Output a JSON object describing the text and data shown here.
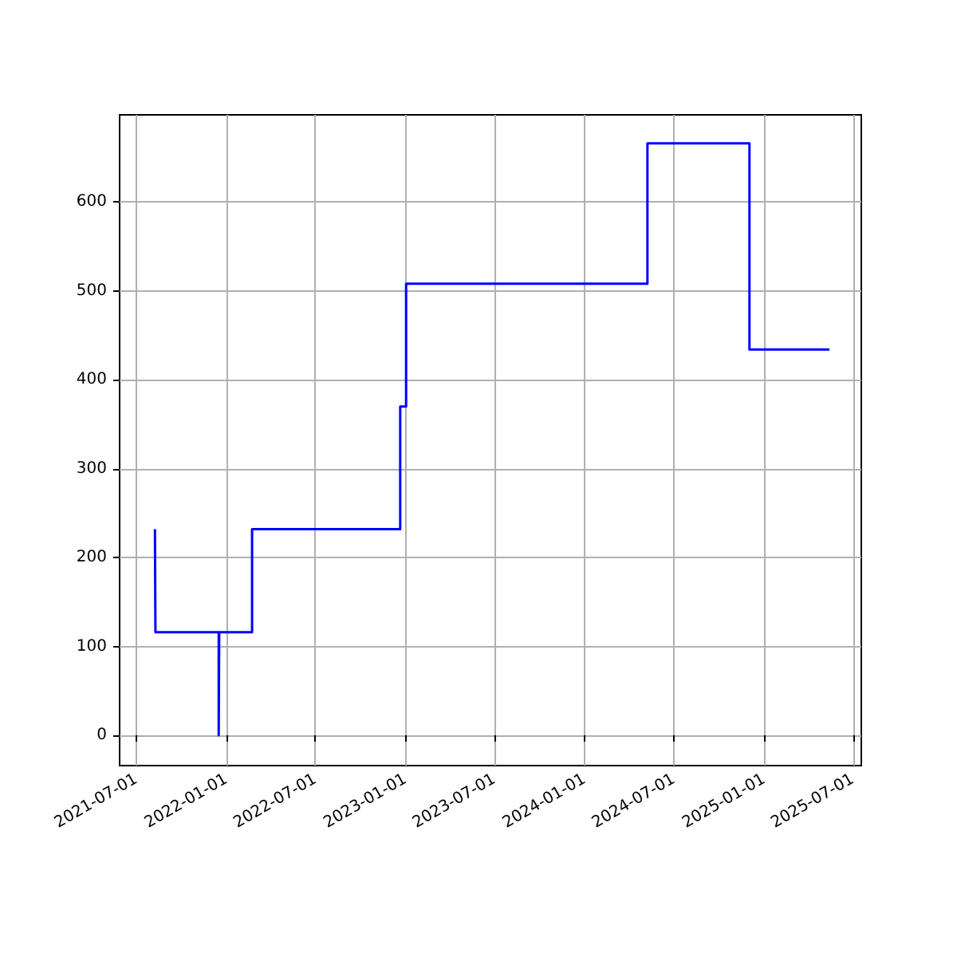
{
  "chart_data": {
    "type": "step",
    "x": [
      "2021-08-08",
      "2021-08-09",
      "2021-12-16",
      "2021-12-17",
      "2022-02-22",
      "2022-12-21",
      "2023-01-02",
      "2024-05-08",
      "2024-12-02",
      "2025-05-14"
    ],
    "series": [
      {
        "color": "#0000ff",
        "values": [
          232,
          116,
          0,
          116,
          232,
          370,
          508,
          666,
          434,
          434
        ]
      }
    ],
    "xlim": [
      "2021-05-28",
      "2025-07-18"
    ],
    "xticks": [
      "2021-07-01",
      "2022-01-01",
      "2022-07-01",
      "2023-01-01",
      "2023-07-01",
      "2024-01-01",
      "2024-07-01",
      "2025-01-01",
      "2025-07-01"
    ],
    "ylim": [
      -34,
      698
    ],
    "yticks": [
      0,
      100,
      200,
      300,
      400,
      500,
      600
    ],
    "grid": true
  }
}
